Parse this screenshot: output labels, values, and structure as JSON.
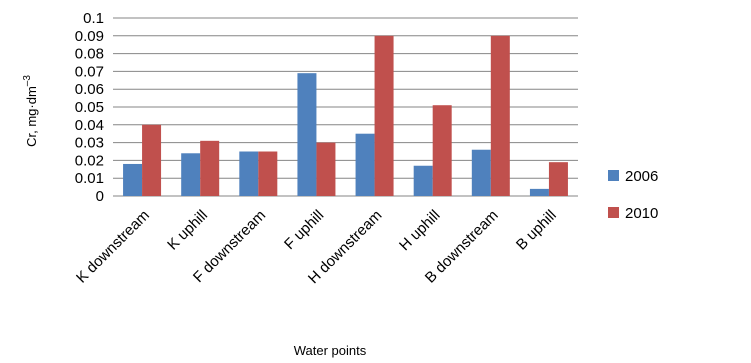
{
  "chart_data": {
    "type": "bar",
    "categories": [
      "K downstream",
      "K uphill",
      "F downstream",
      "F uphill",
      "H downstream",
      "H uphill",
      "B downstream",
      "B uphill"
    ],
    "series": [
      {
        "name": "2006",
        "color": "#4f81bd",
        "values": [
          0.018,
          0.024,
          0.025,
          0.069,
          0.035,
          0.017,
          0.026,
          0.004
        ]
      },
      {
        "name": "2010",
        "color": "#c0504d",
        "values": [
          0.04,
          0.031,
          0.025,
          0.03,
          0.09,
          0.051,
          0.09,
          0.019
        ]
      }
    ],
    "yticks": [
      "0",
      "0.01",
      "0.02",
      "0.03",
      "0.04",
      "0.05",
      "0.06",
      "0.07",
      "0.08",
      "0.09",
      "0.1"
    ],
    "ylim": [
      0,
      0.1
    ],
    "xlabel": "Water points",
    "ylabel_main": "Cr, mg·dm",
    "ylabel_sup": "–3",
    "grid": true,
    "legend_position": "right"
  }
}
